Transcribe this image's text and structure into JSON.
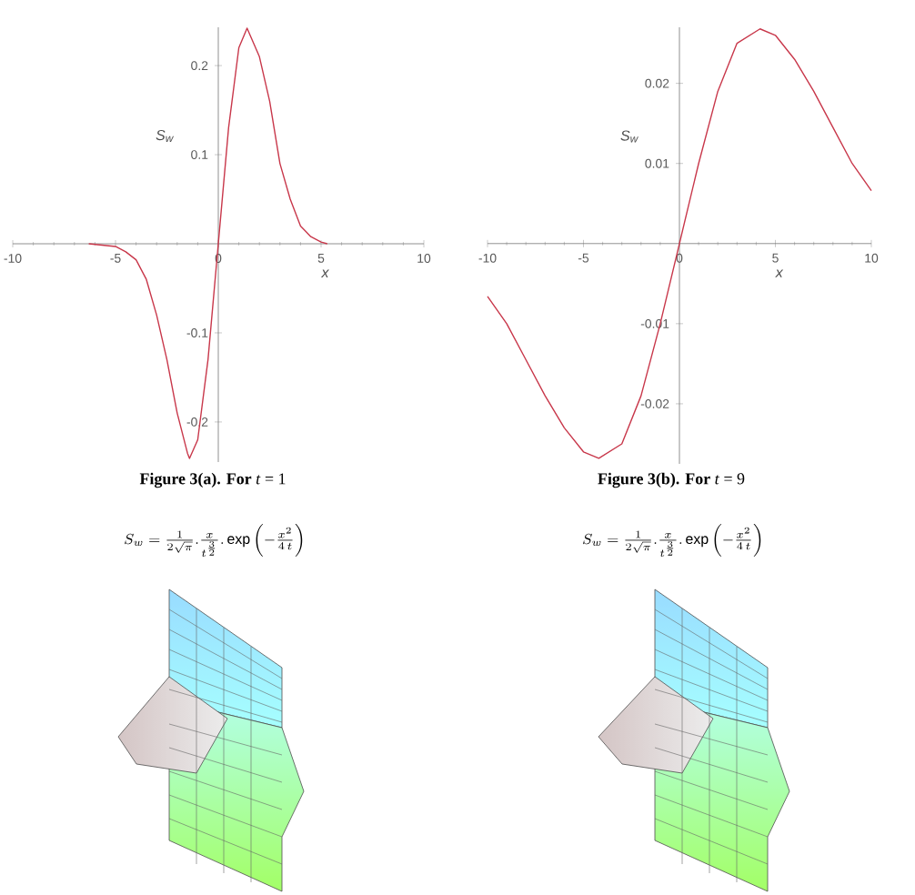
{
  "chart_data": [
    {
      "type": "line",
      "xlabel": "x",
      "ylabel": "S$_{w}$",
      "color": "#c8374a",
      "x": [
        -6.3,
        -5,
        -4.5,
        -4,
        -3.5,
        -3,
        -2.5,
        -2,
        -1.5,
        -1.4,
        -1,
        -0.5,
        0,
        0.5,
        1,
        1.4,
        2,
        2.5,
        3,
        3.5,
        4,
        4.5,
        5,
        5.3
      ],
      "values": [
        0,
        -0.003,
        -0.009,
        -0.018,
        -0.04,
        -0.08,
        -0.13,
        -0.19,
        -0.235,
        -0.241,
        -0.22,
        -0.13,
        0,
        0.13,
        0.22,
        0.242,
        0.21,
        0.16,
        0.09,
        0.05,
        0.02,
        0.008,
        0.002,
        0
      ],
      "xlim": [
        -10,
        10
      ],
      "ylim": [
        -0.245,
        0.243
      ],
      "xticks": [
        -10,
        -5,
        0,
        5,
        10
      ],
      "yticks": [
        -0.2,
        -0.1,
        0.1,
        0.2
      ],
      "annotations": [
        "**Figure 3(a). For** *t* = 1",
        "S_{w} = \\frac{1}{2\\sqrt{\\pi}} . \\frac{x}{t^{\\frac{3}{2}}} .\\exp\\left( - \\frac{x^{2}}{4\\,t}\\right)"
      ]
    },
    {
      "type": "line",
      "xlabel": "x",
      "ylabel": "S$_{w}$",
      "color": "#c8374a",
      "x": [
        -10,
        -9,
        -8,
        -7,
        -6,
        -5,
        -4.2,
        -3,
        -2,
        -1,
        0,
        1,
        2,
        3,
        4.2,
        5,
        6,
        7,
        8,
        9,
        10
      ],
      "values": [
        -0.0066,
        -0.01,
        -0.0145,
        -0.019,
        -0.023,
        -0.026,
        -0.0268,
        -0.025,
        -0.019,
        -0.01,
        0,
        0.01,
        0.019,
        0.025,
        0.0268,
        0.026,
        0.023,
        0.019,
        0.0145,
        0.01,
        0.0066
      ],
      "xlim": [
        -10,
        10
      ],
      "ylim": [
        -0.0275,
        0.027
      ],
      "xticks": [
        -10,
        -5,
        0,
        5,
        10
      ],
      "yticks": [
        -0.02,
        -0.01,
        0.01,
        0.02
      ],
      "annotations": [
        "**Figure 3(b). For** *t* = 9",
        "S_{w} = \\frac{1}{2\\sqrt{\\pi}} . \\frac{x}{t^{\\frac{3}{2}}} .\\exp\\left( - \\frac{x^{2}}{4\\,t}\\right)"
      ]
    }
  ]
}
